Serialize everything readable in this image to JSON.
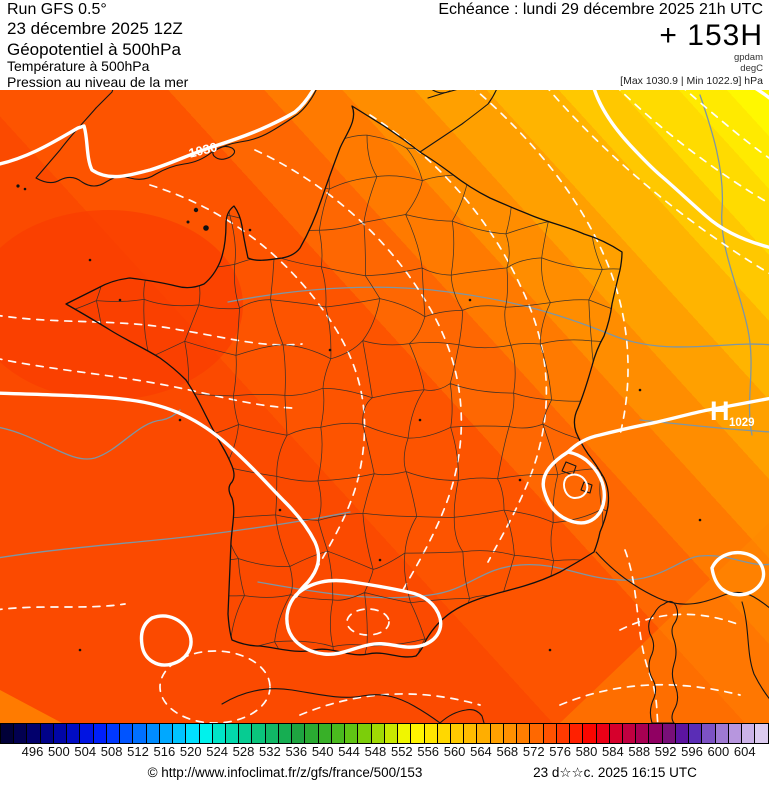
{
  "header": {
    "run": "Run GFS 0.5°",
    "run_date": "23 décembre 2025 12Z",
    "param_main": "Géopotentiel à 500hPa",
    "param_2": "Température à 500hPa",
    "param_3": "Pression au niveau de la mer",
    "echeance": "Echéance : lundi 29 décembre 2025 21h UTC",
    "lead_time": "+ 153H",
    "unit_1": "gpdam",
    "unit_2": "degC",
    "minmax": "[Max 1030.9 | Min 1022.9] hPa"
  },
  "map": {
    "labels": {
      "isobar_label": "1030",
      "high_letter": "H",
      "high_value": "1029"
    },
    "band_colors": [
      {
        "from": 0.0,
        "to": 0.34,
        "color": "#fb4a00"
      },
      {
        "from": 0.34,
        "to": 0.5,
        "color": "#fd5400"
      },
      {
        "from": 0.5,
        "to": 0.58,
        "color": "#fe6702"
      },
      {
        "from": 0.58,
        "to": 0.645,
        "color": "#ff7a00"
      },
      {
        "from": 0.645,
        "to": 0.705,
        "color": "#ff8d00"
      },
      {
        "from": 0.705,
        "to": 0.765,
        "color": "#ffa000"
      },
      {
        "from": 0.765,
        "to": 0.825,
        "color": "#ffb400"
      },
      {
        "from": 0.825,
        "to": 0.875,
        "color": "#ffc800"
      },
      {
        "from": 0.875,
        "to": 0.925,
        "color": "#ffdb00"
      },
      {
        "from": 0.925,
        "to": 0.965,
        "color": "#ffea00"
      },
      {
        "from": 0.965,
        "to": 1.0,
        "color": "#fff800"
      }
    ],
    "line_colors": {
      "isobar_solid": "#ffffff",
      "temperature_dashed": "#ffffff",
      "geopotential_thin": "#7d96a5",
      "coastline": "#151515"
    }
  },
  "colorbar": {
    "ticks": [
      "496",
      "500",
      "504",
      "508",
      "512",
      "516",
      "520",
      "524",
      "528",
      "532",
      "536",
      "540",
      "544",
      "548",
      "552",
      "556",
      "560",
      "564",
      "568",
      "572",
      "576",
      "580",
      "584",
      "588",
      "592",
      "596",
      "600",
      "604"
    ],
    "cells": [
      "#010038",
      "#020050",
      "#02006c",
      "#010288",
      "#0106a6",
      "#010cc4",
      "#0114e2",
      "#0020fa",
      "#0038ff",
      "#0054ff",
      "#0070ff",
      "#008cff",
      "#00a8ff",
      "#00c4ff",
      "#00e0ff",
      "#00f2ec",
      "#00e4c8",
      "#02d8ac",
      "#06cc92",
      "#0ac47c",
      "#10b866",
      "#16ae52",
      "#1ea440",
      "#2aaa32",
      "#38b028",
      "#4aba1e",
      "#60c414",
      "#7cce0a",
      "#a0da04",
      "#c8e800",
      "#f0f600",
      "#fff400",
      "#ffe600",
      "#ffd800",
      "#ffca00",
      "#ffbc00",
      "#ffae00",
      "#ffa000",
      "#ff9000",
      "#ff7e00",
      "#ff6800",
      "#ff5200",
      "#ff3a00",
      "#ff2000",
      "#fa0600",
      "#ea0016",
      "#d6002c",
      "#c00040",
      "#a80052",
      "#900062",
      "#780f78",
      "#5c14a0",
      "#5a2db6",
      "#7c52c4",
      "#9e79d2",
      "#b796de",
      "#cbb2e8",
      "#dccbf0"
    ]
  },
  "footer": {
    "attribution": "© http://www.infoclimat.fr/z/gfs/france/500/153",
    "timestamp": "23 d☆☆c. 2025 16:15 UTC"
  }
}
